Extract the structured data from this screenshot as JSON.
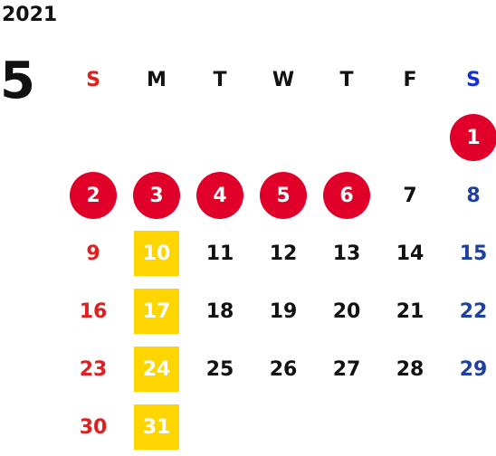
{
  "year": "2021",
  "month": "5",
  "weekdays": [
    "S",
    "M",
    "T",
    "W",
    "T",
    "F",
    "S"
  ],
  "colors": {
    "holiday_circle": "#e0002a",
    "highlight_square": "#ffd500",
    "sunday_text": "#e02020",
    "saturday_text": "#2040a0"
  },
  "weeks": [
    [
      "",
      "",
      "",
      "",
      "",
      "",
      "1"
    ],
    [
      "2",
      "3",
      "4",
      "5",
      "6",
      "7",
      "8"
    ],
    [
      "9",
      "10",
      "11",
      "12",
      "13",
      "14",
      "15"
    ],
    [
      "16",
      "17",
      "18",
      "19",
      "20",
      "21",
      "22"
    ],
    [
      "23",
      "24",
      "25",
      "26",
      "27",
      "28",
      "29"
    ],
    [
      "30",
      "31",
      "",
      "",
      "",
      "",
      ""
    ]
  ],
  "holidays": [
    "1",
    "2",
    "3",
    "4",
    "5",
    "6"
  ],
  "highlighted": [
    "10",
    "17",
    "24",
    "31"
  ]
}
